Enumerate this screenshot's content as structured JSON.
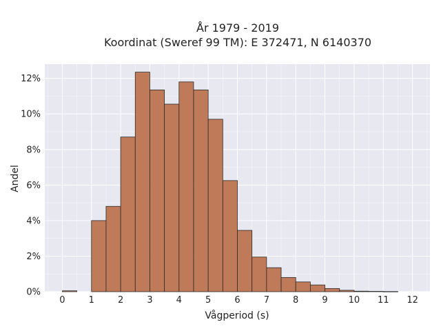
{
  "chart_data": {
    "type": "bar",
    "title_lines": [
      "År 1979 - 2019",
      "Koordinat (Sweref 99 TM): E 372471, N 6140370"
    ],
    "xlabel": "Vågperiod (s)",
    "ylabel": "Andel",
    "xlim": [
      -0.6,
      12.6
    ],
    "ylim": [
      0,
      12.8
    ],
    "xticks": [
      0,
      1,
      2,
      3,
      4,
      5,
      6,
      7,
      8,
      9,
      10,
      11,
      12
    ],
    "yticks": [
      0,
      2,
      4,
      6,
      8,
      10,
      12
    ],
    "ytick_suffix": "%",
    "bin_width": 0.5,
    "bin_starts": [
      0,
      1,
      1.5,
      2,
      2.5,
      3,
      3.5,
      4,
      4.5,
      5,
      5.5,
      6,
      6.5,
      7,
      7.5,
      8,
      8.5,
      9,
      9.5,
      10,
      10.5,
      11
    ],
    "values": [
      0.05,
      4.0,
      4.8,
      8.7,
      12.35,
      11.35,
      10.55,
      11.8,
      11.35,
      9.7,
      6.25,
      3.45,
      1.95,
      1.35,
      0.8,
      0.55,
      0.38,
      0.18,
      0.08,
      0.03,
      0.02,
      0.01
    ],
    "grid": true,
    "background": "#e8e8f0",
    "bar_color": "#b86a43",
    "edge_color": "#2b2b2b"
  }
}
